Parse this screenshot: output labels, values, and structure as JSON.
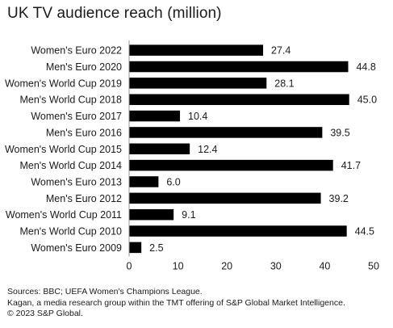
{
  "chart_data": {
    "type": "bar",
    "orientation": "horizontal",
    "title": "UK TV audience reach (million)",
    "categories": [
      "Women's Euro 2022",
      "Men's Euro 2020",
      "Women's World Cup 2019",
      "Men's World Cup 2018",
      "Women's Euro 2017",
      "Men's Euro 2016",
      "Women's World Cup 2015",
      "Men's World Cup 2014",
      "Women's Euro 2013",
      "Men's Euro 2012",
      "Women's World Cup 2011",
      "Men's World Cup 2010",
      "Women's Euro 2009"
    ],
    "values": [
      27.4,
      44.8,
      28.1,
      45.0,
      10.4,
      39.5,
      12.4,
      41.7,
      6.0,
      39.2,
      9.1,
      44.5,
      2.5
    ],
    "value_labels": [
      "27.4",
      "44.8",
      "28.1",
      "45.0",
      "10.4",
      "39.5",
      "12.4",
      "41.7",
      "6.0",
      "39.2",
      "9.1",
      "44.5",
      "2.5"
    ],
    "xlim": [
      0,
      50
    ],
    "xticks": [
      0,
      10,
      20,
      30,
      40,
      50
    ],
    "xtick_labels": [
      "0",
      "10",
      "20",
      "30",
      "40",
      "50"
    ],
    "grid": false,
    "bar_color": "#000000"
  },
  "footer": {
    "line1": "Sources: BBC; UEFA Women's Champions League.",
    "line2": "Kagan, a media research group within the TMT offering of S&P Global Market Intelligence.",
    "line3": "© 2023 S&P Global."
  }
}
